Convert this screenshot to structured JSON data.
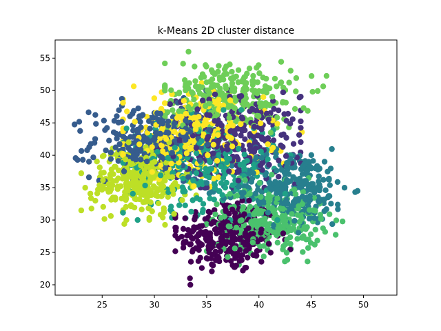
{
  "chart_data": {
    "type": "scatter",
    "title": "k-Means 2D cluster distance",
    "xlabel": "",
    "ylabel": "",
    "xlim": [
      20.5,
      53.2
    ],
    "ylim": [
      18.4,
      57.8
    ],
    "x_ticks": [
      25,
      30,
      35,
      40,
      45,
      50
    ],
    "y_ticks": [
      20,
      25,
      30,
      35,
      40,
      45,
      50,
      55
    ],
    "grid": false,
    "legend": "none",
    "point_count_per_cluster": 300,
    "series": [
      {
        "color": "#440154",
        "center": [
          37.0,
          27.5
        ],
        "spread": [
          2.3,
          2.8
        ],
        "extent": {
          "x": [
            32,
            43
          ],
          "y": [
            20,
            33
          ]
        }
      },
      {
        "color": "#46327e",
        "center": [
          37.5,
          42.5
        ],
        "spread": [
          3.3,
          3.3
        ],
        "extent": {
          "x": [
            29,
            44
          ],
          "y": [
            35,
            50
          ]
        }
      },
      {
        "color": "#365c8d",
        "center": [
          30.0,
          42.0
        ],
        "spread": [
          3.0,
          2.8
        ],
        "extent": {
          "x": [
            22,
            36
          ],
          "y": [
            36,
            50
          ]
        }
      },
      {
        "color": "#277f8e",
        "center": [
          43.0,
          35.0
        ],
        "spread": [
          2.8,
          3.0
        ],
        "extent": {
          "x": [
            35,
            52
          ],
          "y": [
            27,
            45
          ]
        }
      },
      {
        "color": "#1fa187",
        "center": [
          34.5,
          38.5
        ],
        "spread": [
          3.5,
          3.5
        ],
        "extent": {
          "x": [
            27,
            43
          ],
          "y": [
            30,
            47
          ]
        }
      },
      {
        "color": "#4ac16d",
        "center": [
          41.0,
          30.0
        ],
        "spread": [
          2.5,
          2.6
        ],
        "extent": {
          "x": [
            35,
            48
          ],
          "y": [
            23,
            37
          ]
        }
      },
      {
        "color": "#6ece58",
        "center": [
          37.0,
          49.0
        ],
        "spread": [
          3.3,
          2.8
        ],
        "extent": {
          "x": [
            31,
            49
          ],
          "y": [
            42,
            56
          ]
        }
      },
      {
        "color": "#bddf26",
        "center": [
          28.5,
          36.0
        ],
        "spread": [
          2.2,
          2.6
        ],
        "extent": {
          "x": [
            23,
            34
          ],
          "y": [
            29,
            42
          ]
        }
      },
      {
        "color": "#fde725",
        "center": [
          33.5,
          43.0
        ],
        "spread": [
          3.5,
          3.2
        ],
        "extent": {
          "x": [
            27,
            45
          ],
          "y": [
            31,
            53
          ]
        }
      }
    ]
  }
}
